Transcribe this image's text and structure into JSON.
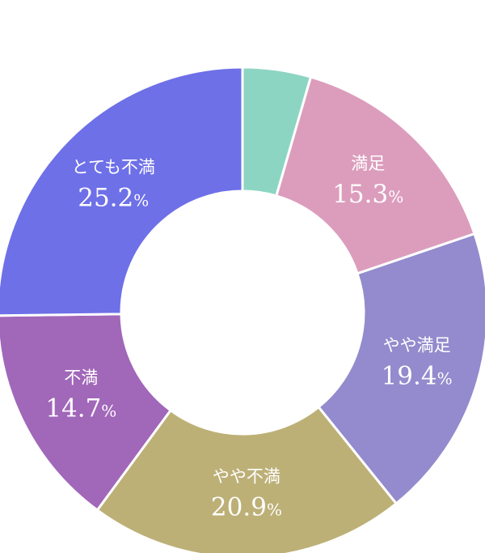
{
  "chart_data": {
    "type": "pie",
    "slices": [
      {
        "label": "",
        "value": 4.5,
        "display": "",
        "unit": "",
        "color": "#8dd5c3"
      },
      {
        "label": "満足",
        "value": 15.3,
        "display": "15.3",
        "unit": "%",
        "color": "#dc9dbd"
      },
      {
        "label": "やや満足",
        "value": 19.4,
        "display": "19.4",
        "unit": "%",
        "color": "#938bcd"
      },
      {
        "label": "やや不満",
        "value": 20.9,
        "display": "20.9",
        "unit": "%",
        "color": "#bdb077"
      },
      {
        "label": "不満",
        "value": 14.7,
        "display": "14.7",
        "unit": "%",
        "color": "#a167b9"
      },
      {
        "label": "とても不満",
        "value": 25.2,
        "display": "25.2",
        "unit": "%",
        "color": "#6e70e8"
      }
    ]
  }
}
